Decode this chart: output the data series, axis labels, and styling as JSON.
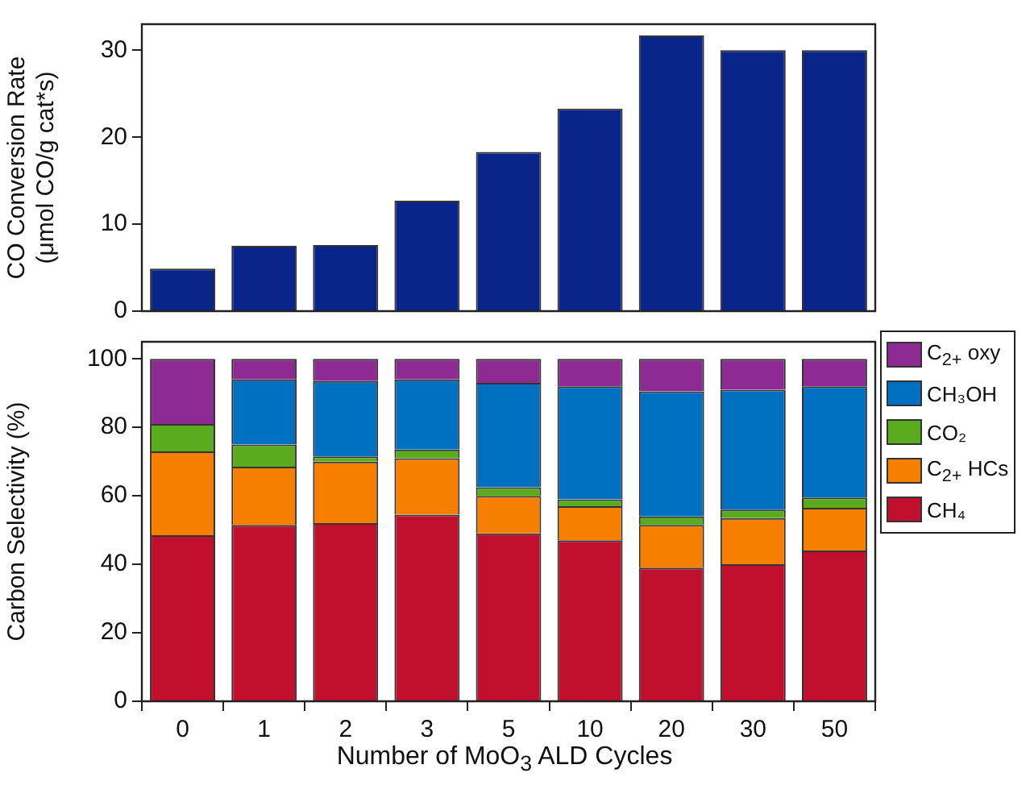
{
  "chart_data": [
    {
      "type": "bar",
      "ylabel": "CO Conversion Rate\n(μmol CO/g cat*s)",
      "categories": [
        "0",
        "1",
        "2",
        "3",
        "5",
        "10",
        "20",
        "30",
        "50"
      ],
      "values": [
        4.9,
        7.5,
        7.6,
        12.7,
        18.3,
        23.3,
        31.7,
        30,
        30
      ],
      "color": "#0a2589",
      "ylim": [
        0,
        33
      ],
      "yticks": [
        0,
        10,
        20,
        30
      ],
      "grid": false,
      "tick_labels": "y"
    },
    {
      "type": "bar",
      "stacked": true,
      "xlabel": "Number of MoO$_{3}$ ALD Cycles",
      "ylabel": "Carbon Selectivity (%)",
      "categories": [
        "0",
        "1",
        "2",
        "3",
        "5",
        "10",
        "20",
        "30",
        "50"
      ],
      "ylim": [
        0,
        105
      ],
      "yticks": [
        0,
        20,
        40,
        60,
        80,
        100
      ],
      "grid": false,
      "legend": "right",
      "series": [
        {
          "name": "CH₄",
          "color": "#c0102e",
          "values": [
            48.5,
            51.5,
            52,
            54.5,
            49,
            47,
            39,
            40,
            44
          ]
        },
        {
          "name": "C$_{2+}$ HCs",
          "color": "#f77f00",
          "values": [
            24.5,
            17,
            18,
            16.5,
            11,
            10,
            12.5,
            13.5,
            12.5
          ]
        },
        {
          "name": "CO₂",
          "color": "#5aac1e",
          "values": [
            8,
            6.5,
            1.5,
            2.5,
            2.5,
            2,
            2.5,
            2.5,
            3
          ]
        },
        {
          "name": "CH₃OH",
          "color": "#0070c0",
          "values": [
            0,
            19,
            22,
            20.5,
            30.5,
            33,
            36.5,
            35,
            32.5
          ]
        },
        {
          "name": "C$_{2+}$ oxy",
          "color": "#8e2a93",
          "values": [
            19,
            6,
            6.5,
            6,
            7,
            8,
            9.5,
            9,
            8
          ]
        }
      ]
    }
  ]
}
